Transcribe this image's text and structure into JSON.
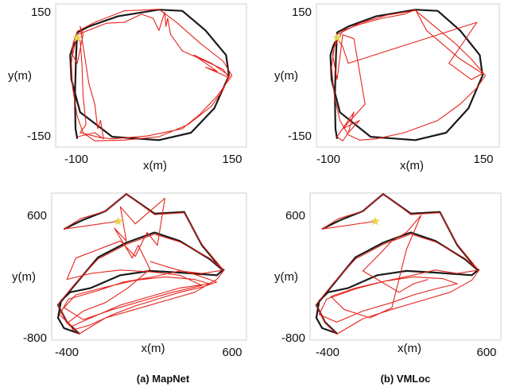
{
  "colors": {
    "ground_truth": "#1a1a1a",
    "prediction": "#e5231b",
    "start_marker": "#e8d34a"
  },
  "chart_data": [
    {
      "id": "p00",
      "type": "line",
      "row": "top",
      "caption": "(a) MapNet",
      "xlabel": "x(m)",
      "ylabel": "y(m)",
      "xticks": [
        "-100",
        "150"
      ],
      "yticks": [
        "150",
        "-150"
      ],
      "xlim": [
        -137,
        190
      ],
      "ylim": [
        -185,
        165
      ],
      "start_point": [
        -100,
        82
      ],
      "series": [
        {
          "role": "ground_truth",
          "x": [
            -100,
            -107,
            -112,
            -110,
            -95,
            -40,
            40,
            95,
            135,
            160,
            155,
            120,
            80,
            40,
            -30,
            -80,
            -100,
            -102,
            -104,
            -103,
            -100
          ],
          "y": [
            82,
            62,
            40,
            -20,
            -100,
            -160,
            -168,
            -150,
            -90,
            -10,
            40,
            100,
            148,
            151,
            135,
            110,
            95,
            40,
            -60,
            -140,
            -165
          ]
        },
        {
          "role": "prediction",
          "x": [
            -100,
            -95,
            -92,
            -90,
            -85,
            -95,
            -60,
            -40,
            20,
            80,
            110,
            140,
            165,
            150,
            110,
            70,
            40,
            -20,
            -70,
            -100,
            -107,
            -110,
            -108,
            -100,
            -90,
            -70,
            -20,
            40,
            90,
            130,
            150,
            160,
            130,
            100,
            140,
            120,
            160,
            150,
            120,
            80,
            60,
            55,
            52,
            50,
            40,
            30,
            10,
            -20,
            -50,
            -100,
            -108,
            -100,
            -90,
            -95,
            -80,
            -70,
            -65,
            -60,
            -55,
            -70,
            -100
          ],
          "y": [
            82,
            75,
            20,
            -60,
            -130,
            -150,
            -162,
            -165,
            -158,
            -140,
            -105,
            -60,
            -10,
            25,
            70,
            120,
            152,
            148,
            120,
            98,
            70,
            20,
            -40,
            -110,
            -150,
            -170,
            -168,
            -160,
            -130,
            -85,
            -45,
            -10,
            20,
            40,
            0,
            10,
            -15,
            5,
            25,
            50,
            90,
            130,
            110,
            145,
            100,
            130,
            140,
            120,
            118,
            90,
            40,
            20,
            90,
            110,
            -30,
            -80,
            -140,
            -120,
            -165,
            -150,
            -160
          ]
        }
      ]
    },
    {
      "id": "p01",
      "type": "line",
      "row": "top",
      "caption": "(b) VMLoc",
      "xlabel": "x(m)",
      "ylabel": "y(m)",
      "xticks": [
        "-100",
        "150"
      ],
      "yticks": [
        "150",
        "-150"
      ],
      "xlim": [
        -137,
        190
      ],
      "ylim": [
        -185,
        165
      ],
      "start_point": [
        -100,
        82
      ],
      "series": [
        {
          "role": "ground_truth",
          "x": [
            -100,
            -107,
            -112,
            -110,
            -95,
            -40,
            40,
            95,
            135,
            160,
            155,
            120,
            80,
            40,
            -30,
            -80,
            -100,
            -102,
            -104,
            -103,
            -100
          ],
          "y": [
            82,
            62,
            40,
            -20,
            -100,
            -160,
            -168,
            -150,
            -90,
            -10,
            40,
            100,
            148,
            151,
            135,
            110,
            95,
            40,
            -60,
            -140,
            -165
          ]
        },
        {
          "role": "prediction",
          "x": [
            -100,
            -90,
            -80,
            150,
            120,
            100,
            140,
            160,
            120,
            60,
            40,
            20,
            -20,
            -60,
            -90,
            -105,
            -110,
            -105,
            -95,
            -80,
            -60,
            -30,
            20,
            80,
            120,
            150,
            165,
            140,
            110,
            70,
            40,
            -10,
            -60,
            -100,
            -108,
            -100,
            -90,
            -70,
            -50,
            -90,
            -60,
            -80,
            -70,
            -100,
            -90,
            -80
          ],
          "y": [
            82,
            60,
            20,
            120,
            60,
            20,
            -20,
            -5,
            30,
            100,
            151,
            140,
            130,
            115,
            100,
            60,
            10,
            -60,
            -120,
            -155,
            -168,
            -165,
            -150,
            -120,
            -80,
            -40,
            -10,
            30,
            70,
            115,
            149,
            138,
            118,
            90,
            40,
            -20,
            90,
            80,
            -80,
            -140,
            -120,
            -150,
            -100,
            -160,
            -170,
            -150
          ]
        }
      ]
    },
    {
      "id": "p10",
      "type": "line",
      "row": "bottom",
      "caption": "(a) MapNet",
      "xlabel": "x(m)",
      "ylabel": "y(m)",
      "xticks": [
        "-400",
        "600"
      ],
      "yticks": [
        "600",
        "-800"
      ],
      "xlim": [
        -563,
        750
      ],
      "ylim": [
        -860,
        860
      ],
      "start_point": [
        -115,
        530
      ],
      "series": [
        {
          "role": "ground_truth",
          "x": [
            -480,
            -360,
            -200,
            -60,
            130,
            330,
            450,
            590,
            500,
            300,
            130,
            -60,
            -250,
            -400,
            -520,
            -460,
            -380,
            -480,
            -520,
            -500,
            -440,
            -300,
            -100,
            100,
            300,
            550,
            600
          ],
          "y": [
            440,
            540,
            650,
            850,
            620,
            640,
            250,
            -40,
            90,
            300,
            400,
            280,
            110,
            -200,
            -450,
            -650,
            -780,
            -720,
            -600,
            -400,
            -300,
            -250,
            -100,
            -50,
            -70,
            -100,
            -30
          ]
        },
        {
          "role": "prediction",
          "x": [
            -115,
            -480,
            -370,
            -200,
            -60,
            130,
            330,
            450,
            590,
            500,
            300,
            130,
            -60,
            -250,
            -400,
            -520,
            -460,
            -380,
            -200,
            0,
            200,
            400,
            550,
            600,
            450,
            300,
            120,
            -80,
            -250,
            -450,
            -510,
            -430,
            -300,
            -100,
            100,
            300,
            500,
            400,
            200,
            0,
            -200,
            -400,
            -480,
            -350,
            -150,
            50,
            250,
            450,
            300,
            100,
            -100,
            -300,
            -460,
            -400,
            -250,
            -100,
            0,
            80,
            150,
            200,
            100,
            0,
            -100,
            -60,
            -140,
            -20,
            20,
            100,
            -50,
            -200,
            -350,
            -450,
            -420,
            -300,
            -150,
            0,
            150,
            300,
            450,
            550,
            400,
            250,
            100
          ],
          "y": [
            530,
            440,
            560,
            650,
            850,
            610,
            630,
            260,
            -30,
            100,
            290,
            380,
            260,
            90,
            -190,
            -440,
            -660,
            -790,
            -600,
            -500,
            -400,
            -300,
            -150,
            -40,
            -80,
            -50,
            -120,
            -180,
            -280,
            -380,
            -560,
            -700,
            -600,
            -450,
            -350,
            -250,
            -200,
            -150,
            -120,
            -160,
            -240,
            -330,
            -480,
            -620,
            -500,
            -400,
            -300,
            -220,
            -100,
            -60,
            -40,
            -80,
            -150,
            100,
            200,
            300,
            120,
            400,
            250,
            800,
            650,
            500,
            700,
            300,
            450,
            100,
            250,
            -30,
            -250,
            -420,
            -520,
            -650,
            -740,
            -680,
            -560,
            -460,
            -380,
            -300,
            -240,
            -180,
            -90,
            -20,
            60
          ]
        }
      ]
    },
    {
      "id": "p11",
      "type": "line",
      "row": "bottom",
      "caption": "(b) VMLoc",
      "xlabel": "x(m)",
      "ylabel": "y(m)",
      "xticks": [
        "-400",
        "600"
      ],
      "yticks": [
        "600",
        "-800"
      ],
      "xlim": [
        -563,
        750
      ],
      "ylim": [
        -860,
        860
      ],
      "start_point": [
        -115,
        530
      ],
      "series": [
        {
          "role": "ground_truth",
          "x": [
            -480,
            -360,
            -200,
            -60,
            130,
            330,
            450,
            590,
            500,
            300,
            130,
            -60,
            -250,
            -400,
            -520,
            -460,
            -380,
            -480,
            -520,
            -500,
            -440,
            -300,
            -100,
            100,
            300,
            550,
            600
          ],
          "y": [
            440,
            540,
            650,
            850,
            620,
            640,
            250,
            -40,
            90,
            300,
            400,
            280,
            110,
            -200,
            -450,
            -650,
            -780,
            -720,
            -600,
            -400,
            -300,
            -250,
            -100,
            -50,
            -70,
            -100,
            -30
          ]
        },
        {
          "role": "prediction",
          "x": [
            -115,
            -480,
            -370,
            -200,
            -60,
            130,
            330,
            450,
            590,
            500,
            300,
            130,
            -60,
            -250,
            -400,
            -520,
            -460,
            -380,
            -200,
            0,
            200,
            400,
            550,
            600,
            450,
            300,
            120,
            -50,
            -250,
            -450,
            -500,
            -380,
            -200,
            0,
            150,
            300,
            450,
            350,
            150,
            -50,
            -250,
            -420,
            -330,
            -150,
            0,
            100,
            200,
            100,
            0,
            -100,
            -200,
            50,
            150,
            250
          ],
          "y": [
            530,
            440,
            560,
            650,
            850,
            610,
            630,
            260,
            -30,
            100,
            290,
            380,
            260,
            90,
            -190,
            -440,
            -660,
            -790,
            -610,
            -500,
            -400,
            -300,
            -160,
            -40,
            -80,
            -40,
            -110,
            -170,
            -260,
            -380,
            -560,
            -650,
            -520,
            -420,
            -330,
            -260,
            -200,
            -140,
            -120,
            -170,
            -250,
            -350,
            -500,
            -600,
            -480,
            200,
            600,
            400,
            300,
            120,
            -50,
            -300,
            -200,
            -150
          ]
        }
      ]
    }
  ]
}
